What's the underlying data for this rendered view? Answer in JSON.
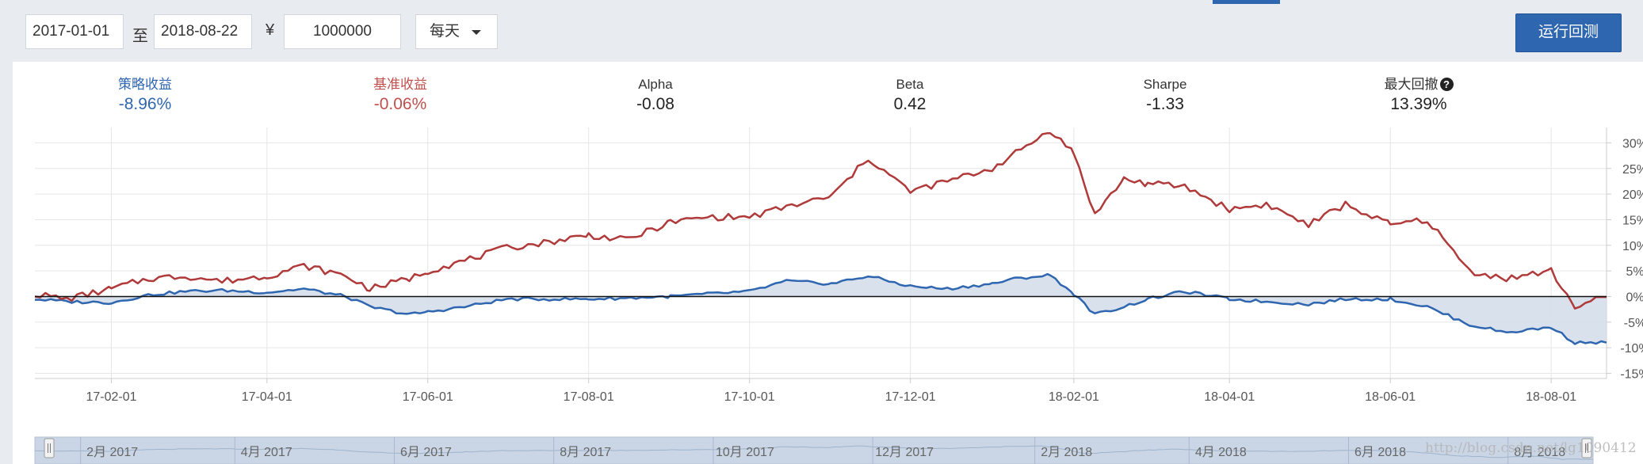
{
  "toolbar": {
    "start_date": "2017-01-01",
    "to_label": "至",
    "end_date": "2018-08-22",
    "currency_symbol": "¥",
    "amount": "1000000",
    "frequency": "每天",
    "run_label": "运行回测"
  },
  "stats": [
    {
      "label": "策略收益",
      "value": "-8.96%",
      "color": "#2f66b0"
    },
    {
      "label": "基准收益",
      "value": "-0.06%",
      "color": "#c0504d"
    },
    {
      "label": "Alpha",
      "value": "-0.08",
      "color": "#222222"
    },
    {
      "label": "Beta",
      "value": "0.42",
      "color": "#222222"
    },
    {
      "label": "Sharpe",
      "value": "-1.33",
      "color": "#222222"
    },
    {
      "label": "最大回撤",
      "value": "13.39%",
      "color": "#222222"
    }
  ],
  "watermark": "http://blog.csdn.net/lg1090412",
  "chart_data": {
    "type": "line",
    "x_start": "2017-01-03",
    "x_end": "2018-08-22",
    "ylim": [
      -16,
      33
    ],
    "y_ticks": [
      "30%",
      "25%",
      "20%",
      "15%",
      "10%",
      "5%",
      "0%",
      "-5%",
      "-10%",
      "-15%"
    ],
    "y_tick_values": [
      30,
      25,
      20,
      15,
      10,
      5,
      0,
      -5,
      -10,
      -15
    ],
    "x_ticks": [
      "17-02-01",
      "17-04-01",
      "17-06-01",
      "17-08-01",
      "17-10-01",
      "17-12-01",
      "18-02-01",
      "18-04-01",
      "18-06-01",
      "18-08-01"
    ],
    "x_tick_dates": [
      "2017-02-01",
      "2017-04-01",
      "2017-06-01",
      "2017-08-01",
      "2017-10-01",
      "2017-12-01",
      "2018-02-01",
      "2018-04-01",
      "2018-06-01",
      "2018-08-01"
    ],
    "navigator_labels": [
      "2月 2017",
      "4月 2017",
      "6月 2017",
      "8月 2017",
      "10月 2017",
      "12月 2017",
      "2月 2018",
      "4月 2018",
      "6月 2018",
      "8月 2018"
    ],
    "navigator_dates": [
      "2017-02-01",
      "2017-04-01",
      "2017-06-01",
      "2017-08-01",
      "2017-10-01",
      "2017-12-01",
      "2018-02-01",
      "2018-04-01",
      "2018-06-01",
      "2018-08-01"
    ],
    "series": [
      {
        "color": "#2f66b0",
        "fill": "#d5deeb",
        "points": [
          [
            "2017-01-03",
            -0.5
          ],
          [
            "2017-01-15",
            -1.0
          ],
          [
            "2017-02-01",
            -1.2
          ],
          [
            "2017-02-15",
            0.3
          ],
          [
            "2017-03-01",
            1.0
          ],
          [
            "2017-03-15",
            1.2
          ],
          [
            "2017-04-01",
            0.8
          ],
          [
            "2017-04-15",
            1.5
          ],
          [
            "2017-05-01",
            0.0
          ],
          [
            "2017-05-10",
            -2.0
          ],
          [
            "2017-05-25",
            -3.5
          ],
          [
            "2017-06-01",
            -3.0
          ],
          [
            "2017-06-15",
            -2.0
          ],
          [
            "2017-07-01",
            -0.5
          ],
          [
            "2017-07-15",
            -0.5
          ],
          [
            "2017-08-01",
            -0.5
          ],
          [
            "2017-08-15",
            -0.3
          ],
          [
            "2017-09-01",
            0.0
          ],
          [
            "2017-09-15",
            0.5
          ],
          [
            "2017-10-01",
            1.0
          ],
          [
            "2017-10-15",
            3.0
          ],
          [
            "2017-11-01",
            2.5
          ],
          [
            "2017-11-15",
            4.0
          ],
          [
            "2017-12-01",
            2.0
          ],
          [
            "2017-12-15",
            1.5
          ],
          [
            "2018-01-01",
            2.5
          ],
          [
            "2018-01-10",
            3.5
          ],
          [
            "2018-01-23",
            4.2
          ],
          [
            "2018-02-01",
            0.5
          ],
          [
            "2018-02-09",
            -3.5
          ],
          [
            "2018-02-20",
            -2.0
          ],
          [
            "2018-03-01",
            -0.5
          ],
          [
            "2018-03-15",
            1.0
          ],
          [
            "2018-04-01",
            -0.5
          ],
          [
            "2018-04-15",
            -1.0
          ],
          [
            "2018-05-01",
            -1.5
          ],
          [
            "2018-05-15",
            -0.5
          ],
          [
            "2018-06-01",
            -0.5
          ],
          [
            "2018-06-15",
            -2.0
          ],
          [
            "2018-07-01",
            -5.5
          ],
          [
            "2018-07-15",
            -7.0
          ],
          [
            "2018-08-01",
            -6.0
          ],
          [
            "2018-08-10",
            -9.0
          ],
          [
            "2018-08-22",
            -9.0
          ]
        ]
      },
      {
        "color": "#b03a3a",
        "fill": "none",
        "points": [
          [
            "2017-01-03",
            0.5
          ],
          [
            "2017-01-15",
            -0.5
          ],
          [
            "2017-02-01",
            1.5
          ],
          [
            "2017-02-15",
            3.5
          ],
          [
            "2017-03-01",
            4.0
          ],
          [
            "2017-03-15",
            3.0
          ],
          [
            "2017-04-01",
            4.0
          ],
          [
            "2017-04-15",
            6.0
          ],
          [
            "2017-05-01",
            4.0
          ],
          [
            "2017-05-10",
            1.5
          ],
          [
            "2017-05-25",
            3.5
          ],
          [
            "2017-06-01",
            5.0
          ],
          [
            "2017-06-15",
            7.0
          ],
          [
            "2017-07-01",
            9.5
          ],
          [
            "2017-07-15",
            10.5
          ],
          [
            "2017-08-01",
            12.0
          ],
          [
            "2017-08-15",
            11.0
          ],
          [
            "2017-09-01",
            14.5
          ],
          [
            "2017-09-15",
            15.5
          ],
          [
            "2017-10-01",
            15.5
          ],
          [
            "2017-10-15",
            17.5
          ],
          [
            "2017-11-01",
            19.5
          ],
          [
            "2017-11-15",
            27.0
          ],
          [
            "2017-12-01",
            20.5
          ],
          [
            "2017-12-15",
            22.5
          ],
          [
            "2018-01-01",
            25.0
          ],
          [
            "2018-01-10",
            28.0
          ],
          [
            "2018-01-23",
            32.5
          ],
          [
            "2018-02-01",
            28.0
          ],
          [
            "2018-02-09",
            16.0
          ],
          [
            "2018-02-20",
            23.0
          ],
          [
            "2018-03-01",
            22.0
          ],
          [
            "2018-03-15",
            21.5
          ],
          [
            "2018-04-01",
            17.0
          ],
          [
            "2018-04-15",
            18.0
          ],
          [
            "2018-05-01",
            14.0
          ],
          [
            "2018-05-15",
            18.0
          ],
          [
            "2018-06-01",
            14.0
          ],
          [
            "2018-06-15",
            15.0
          ],
          [
            "2018-07-01",
            5.0
          ],
          [
            "2018-07-15",
            3.5
          ],
          [
            "2018-08-01",
            5.0
          ],
          [
            "2018-08-10",
            -2.0
          ],
          [
            "2018-08-22",
            -0.1
          ]
        ]
      }
    ]
  }
}
